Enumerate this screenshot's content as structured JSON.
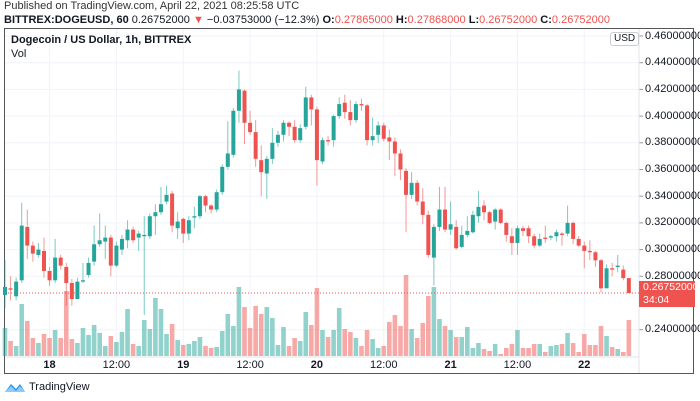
{
  "header": {
    "published": "Published on TradingView.com, April 22, 2021 08:25:58 UTC",
    "symbol": "BITTREX:DOGEUSD, 60",
    "last": "0.26752000",
    "direction_icon": "triangle-down",
    "change": "−0.03753000 (−12.3%)",
    "o_label": "O:",
    "o": "0.27865000",
    "h_label": "H:",
    "h": "0.27868000",
    "l_label": "L:",
    "l": "0.26752000",
    "c_label": "C:",
    "c": "0.26752000"
  },
  "legend": {
    "title": "Dogecoin / US Dollar, 1h, BITTREX",
    "volume": "Vol"
  },
  "currency_badge": "USD",
  "current_price": {
    "value": "0.26752000",
    "countdown": "34:04"
  },
  "footer": {
    "brand": "TradingView"
  },
  "colors": {
    "up": "#26a69a",
    "down": "#ef5350"
  },
  "chart_data": {
    "type": "candlestick",
    "interval": "1h",
    "first_bar": "2021-04-17 16:00",
    "ylim": [
      0.24,
      0.46
    ],
    "y_ticks": [
      "0.46000000",
      "0.44000000",
      "0.42000000",
      "0.40000000",
      "0.38000000",
      "0.36000000",
      "0.34000000",
      "0.32000000",
      "0.30000000",
      "0.28000000",
      "0.24000000"
    ],
    "x_ticks": [
      {
        "label": "18",
        "bar": 8,
        "bold": true
      },
      {
        "label": "12:00",
        "bar": 20
      },
      {
        "label": "19",
        "bar": 32,
        "bold": true
      },
      {
        "label": "12:00",
        "bar": 44
      },
      {
        "label": "20",
        "bar": 56,
        "bold": true
      },
      {
        "label": "12:00",
        "bar": 68
      },
      {
        "label": "21",
        "bar": 80,
        "bold": true
      },
      {
        "label": "12:00",
        "bar": 92
      },
      {
        "label": "22",
        "bar": 104,
        "bold": true
      }
    ],
    "grid": true,
    "ohlcv": [
      [
        0.266,
        0.292,
        0.256,
        0.272,
        28
      ],
      [
        0.271,
        0.28,
        0.262,
        0.27,
        15
      ],
      [
        0.265,
        0.279,
        0.262,
        0.276,
        10
      ],
      [
        0.277,
        0.335,
        0.275,
        0.318,
        52
      ],
      [
        0.317,
        0.33,
        0.293,
        0.303,
        35
      ],
      [
        0.303,
        0.306,
        0.291,
        0.297,
        18
      ],
      [
        0.296,
        0.305,
        0.294,
        0.3,
        13
      ],
      [
        0.299,
        0.309,
        0.279,
        0.284,
        22
      ],
      [
        0.284,
        0.287,
        0.273,
        0.277,
        18
      ],
      [
        0.277,
        0.308,
        0.275,
        0.294,
        26
      ],
      [
        0.294,
        0.296,
        0.285,
        0.288,
        18
      ],
      [
        0.287,
        0.29,
        0.258,
        0.275,
        65
      ],
      [
        0.275,
        0.278,
        0.258,
        0.263,
        17
      ],
      [
        0.263,
        0.279,
        0.263,
        0.276,
        13
      ],
      [
        0.276,
        0.29,
        0.275,
        0.277,
        28
      ],
      [
        0.281,
        0.294,
        0.279,
        0.29,
        21
      ],
      [
        0.291,
        0.318,
        0.288,
        0.304,
        31
      ],
      [
        0.304,
        0.327,
        0.302,
        0.307,
        23
      ],
      [
        0.306,
        0.318,
        0.293,
        0.309,
        10
      ],
      [
        0.309,
        0.311,
        0.28,
        0.288,
        20
      ],
      [
        0.288,
        0.306,
        0.287,
        0.303,
        14
      ],
      [
        0.3,
        0.311,
        0.296,
        0.308,
        24
      ],
      [
        0.307,
        0.322,
        0.301,
        0.315,
        47
      ],
      [
        0.315,
        0.317,
        0.305,
        0.307,
        12
      ],
      [
        0.309,
        0.314,
        0.299,
        0.312,
        10
      ],
      [
        0.31,
        0.325,
        0.251,
        0.311,
        36
      ],
      [
        0.31,
        0.327,
        0.308,
        0.325,
        27
      ],
      [
        0.325,
        0.334,
        0.311,
        0.328,
        58
      ],
      [
        0.328,
        0.347,
        0.326,
        0.334,
        47
      ],
      [
        0.336,
        0.348,
        0.334,
        0.341,
        22
      ],
      [
        0.342,
        0.344,
        0.313,
        0.318,
        32
      ],
      [
        0.316,
        0.328,
        0.308,
        0.321,
        16
      ],
      [
        0.323,
        0.324,
        0.305,
        0.312,
        11
      ],
      [
        0.312,
        0.325,
        0.307,
        0.322,
        12
      ],
      [
        0.324,
        0.332,
        0.316,
        0.325,
        15
      ],
      [
        0.325,
        0.341,
        0.323,
        0.34,
        19
      ],
      [
        0.34,
        0.341,
        0.328,
        0.333,
        10
      ],
      [
        0.333,
        0.334,
        0.327,
        0.33,
        8
      ],
      [
        0.33,
        0.345,
        0.328,
        0.343,
        9
      ],
      [
        0.343,
        0.364,
        0.341,
        0.362,
        25
      ],
      [
        0.362,
        0.396,
        0.36,
        0.372,
        42
      ],
      [
        0.371,
        0.406,
        0.369,
        0.404,
        30
      ],
      [
        0.404,
        0.434,
        0.395,
        0.42,
        69
      ],
      [
        0.419,
        0.42,
        0.379,
        0.395,
        49
      ],
      [
        0.395,
        0.404,
        0.386,
        0.388,
        28
      ],
      [
        0.388,
        0.397,
        0.362,
        0.368,
        50
      ],
      [
        0.367,
        0.378,
        0.34,
        0.358,
        42
      ],
      [
        0.357,
        0.37,
        0.338,
        0.368,
        49
      ],
      [
        0.368,
        0.391,
        0.364,
        0.38,
        38
      ],
      [
        0.38,
        0.389,
        0.377,
        0.386,
        11
      ],
      [
        0.386,
        0.397,
        0.381,
        0.395,
        29
      ],
      [
        0.395,
        0.396,
        0.385,
        0.392,
        10
      ],
      [
        0.392,
        0.397,
        0.38,
        0.382,
        18
      ],
      [
        0.382,
        0.394,
        0.38,
        0.391,
        15
      ],
      [
        0.392,
        0.422,
        0.39,
        0.414,
        44
      ],
      [
        0.414,
        0.416,
        0.393,
        0.405,
        31
      ],
      [
        0.405,
        0.407,
        0.348,
        0.367,
        68
      ],
      [
        0.366,
        0.384,
        0.364,
        0.382,
        26
      ],
      [
        0.382,
        0.385,
        0.378,
        0.381,
        19
      ],
      [
        0.382,
        0.401,
        0.377,
        0.4,
        26
      ],
      [
        0.4,
        0.414,
        0.398,
        0.409,
        48
      ],
      [
        0.41,
        0.416,
        0.398,
        0.403,
        27
      ],
      [
        0.403,
        0.412,
        0.393,
        0.397,
        24
      ],
      [
        0.397,
        0.411,
        0.395,
        0.409,
        18
      ],
      [
        0.409,
        0.413,
        0.404,
        0.408,
        10
      ],
      [
        0.408,
        0.409,
        0.378,
        0.382,
        26
      ],
      [
        0.382,
        0.399,
        0.378,
        0.385,
        17
      ],
      [
        0.386,
        0.396,
        0.38,
        0.393,
        8
      ],
      [
        0.393,
        0.395,
        0.381,
        0.383,
        10
      ],
      [
        0.384,
        0.39,
        0.367,
        0.381,
        34
      ],
      [
        0.381,
        0.384,
        0.355,
        0.372,
        41
      ],
      [
        0.372,
        0.375,
        0.352,
        0.36,
        30
      ],
      [
        0.359,
        0.361,
        0.313,
        0.341,
        81
      ],
      [
        0.341,
        0.358,
        0.338,
        0.35,
        27
      ],
      [
        0.35,
        0.352,
        0.333,
        0.336,
        18
      ],
      [
        0.336,
        0.346,
        0.319,
        0.326,
        33
      ],
      [
        0.326,
        0.329,
        0.294,
        0.296,
        60
      ],
      [
        0.294,
        0.319,
        0.273,
        0.317,
        69
      ],
      [
        0.317,
        0.347,
        0.314,
        0.33,
        37
      ],
      [
        0.33,
        0.347,
        0.313,
        0.315,
        30
      ],
      [
        0.315,
        0.336,
        0.311,
        0.319,
        26
      ],
      [
        0.317,
        0.322,
        0.3,
        0.301,
        19
      ],
      [
        0.302,
        0.318,
        0.301,
        0.311,
        19
      ],
      [
        0.311,
        0.325,
        0.309,
        0.314,
        29
      ],
      [
        0.313,
        0.329,
        0.312,
        0.326,
        8
      ],
      [
        0.325,
        0.344,
        0.32,
        0.332,
        13
      ],
      [
        0.333,
        0.337,
        0.322,
        0.328,
        7
      ],
      [
        0.328,
        0.329,
        0.319,
        0.32,
        5
      ],
      [
        0.321,
        0.331,
        0.315,
        0.33,
        12
      ],
      [
        0.33,
        0.331,
        0.319,
        0.32,
        2
      ],
      [
        0.32,
        0.321,
        0.306,
        0.311,
        8
      ],
      [
        0.31,
        0.316,
        0.296,
        0.305,
        12
      ],
      [
        0.305,
        0.318,
        0.296,
        0.316,
        26
      ],
      [
        0.316,
        0.318,
        0.31,
        0.314,
        8
      ],
      [
        0.316,
        0.318,
        0.305,
        0.31,
        8
      ],
      [
        0.31,
        0.312,
        0.301,
        0.303,
        12
      ],
      [
        0.303,
        0.312,
        0.302,
        0.308,
        12
      ],
      [
        0.309,
        0.318,
        0.305,
        0.308,
        4
      ],
      [
        0.309,
        0.311,
        0.307,
        0.31,
        10
      ],
      [
        0.31,
        0.315,
        0.306,
        0.313,
        11
      ],
      [
        0.312,
        0.313,
        0.303,
        0.311,
        12
      ],
      [
        0.312,
        0.333,
        0.31,
        0.32,
        23
      ],
      [
        0.32,
        0.321,
        0.304,
        0.308,
        13
      ],
      [
        0.308,
        0.31,
        0.302,
        0.303,
        4
      ],
      [
        0.303,
        0.306,
        0.286,
        0.299,
        22
      ],
      [
        0.299,
        0.307,
        0.292,
        0.298,
        11
      ],
      [
        0.298,
        0.299,
        0.287,
        0.292,
        11
      ],
      [
        0.292,
        0.293,
        0.268,
        0.271,
        30
      ],
      [
        0.271,
        0.289,
        0.271,
        0.286,
        20
      ],
      [
        0.286,
        0.29,
        0.28,
        0.285,
        9
      ],
      [
        0.287,
        0.296,
        0.283,
        0.288,
        7
      ],
      [
        0.285,
        0.288,
        0.277,
        0.27865,
        4
      ],
      [
        0.27865,
        0.27868,
        0.26752,
        0.26752,
        36
      ]
    ]
  }
}
